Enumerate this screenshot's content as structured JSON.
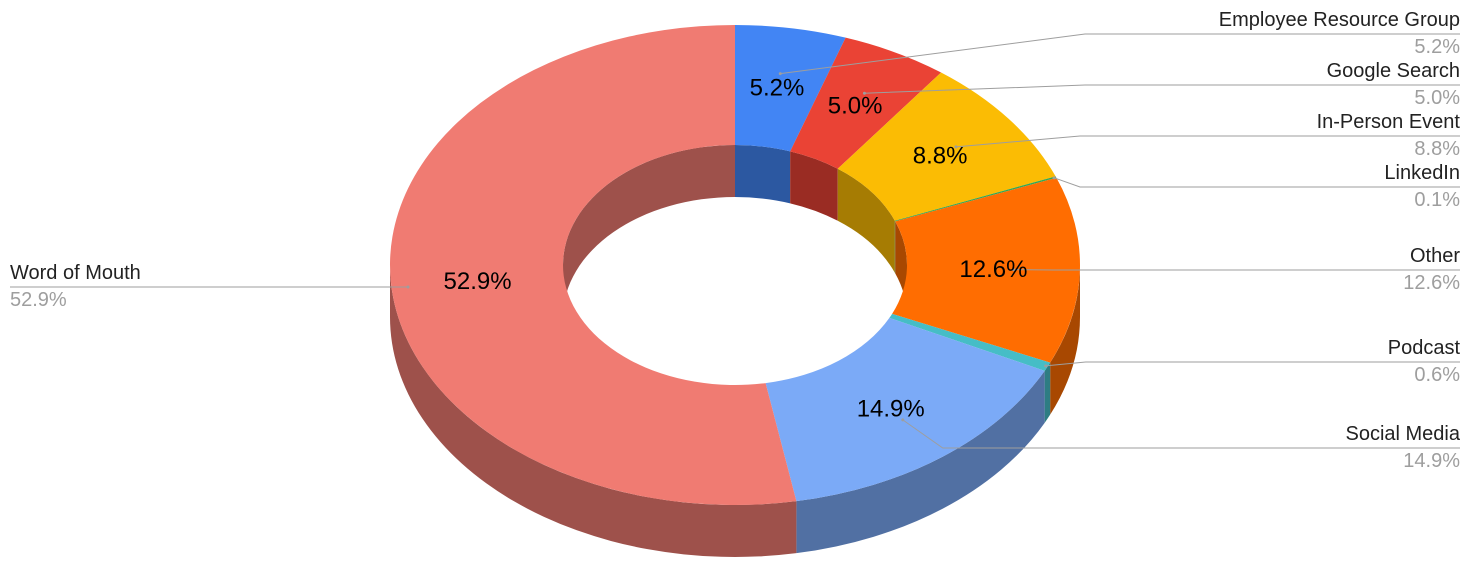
{
  "chart_data": {
    "type": "pie",
    "variant": "3d-donut",
    "title": "",
    "legend": "callout-labels",
    "slices": [
      {
        "label": "Employee Resource Group",
        "value": 5.2,
        "display": "5.2%",
        "color": "#4285F4"
      },
      {
        "label": "Google Search",
        "value": 5.0,
        "display": "5.0%",
        "color": "#EA4335"
      },
      {
        "label": "In-Person Event",
        "value": 8.8,
        "display": "8.8%",
        "color": "#FBBC04"
      },
      {
        "label": "LinkedIn",
        "value": 0.1,
        "display": "0.1%",
        "color": "#34A853"
      },
      {
        "label": "Other",
        "value": 12.6,
        "display": "12.6%",
        "color": "#FF6D01"
      },
      {
        "label": "Podcast",
        "value": 0.6,
        "display": "0.6%",
        "color": "#46BDC6"
      },
      {
        "label": "Social Media",
        "value": 14.9,
        "display": "14.9%",
        "color": "#7BAAF7"
      },
      {
        "label": "Word of Mouth",
        "value": 52.9,
        "display": "52.9%",
        "color": "#F07B72"
      }
    ]
  }
}
